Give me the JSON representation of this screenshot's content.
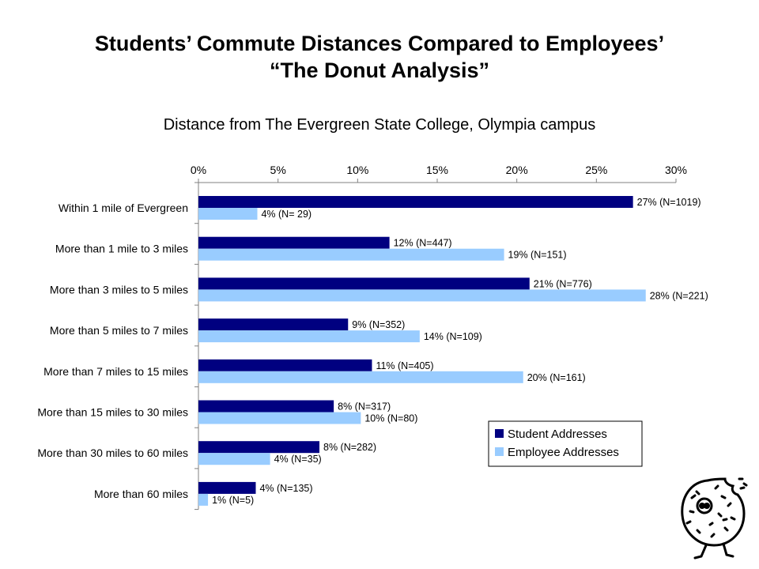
{
  "slide": {
    "title_line1": "Students’ Commute Distances Compared to Employees’",
    "title_line2": "“The Donut Analysis”"
  },
  "colors": {
    "student": "#000080",
    "employee": "#99ccff",
    "axis": "#808080"
  },
  "chart_data": {
    "type": "bar",
    "orientation": "horizontal",
    "title": "Distance from The Evergreen State College, Olympia campus",
    "categories": [
      "Within 1 mile of Evergreen",
      "More than 1 mile to 3 miles",
      "More than 3 miles to 5 miles",
      "More than 5 miles to 7 miles",
      "More than 7 miles to 15 miles",
      "More than 15 miles to 30 miles",
      "More than 30 miles to 60 miles",
      "More than 60 miles"
    ],
    "series": [
      {
        "name": "Student Addresses",
        "values": [
          27.3,
          12.0,
          20.8,
          9.4,
          10.9,
          8.5,
          7.6,
          3.6
        ],
        "labels": [
          "27% (N=1019)",
          "12% (N=447)",
          "21% (N=776)",
          "9% (N=352)",
          "11% (N=405)",
          "8% (N=317)",
          "8% (N=282)",
          "4% (N=135)"
        ]
      },
      {
        "name": "Employee Addresses",
        "values": [
          3.7,
          19.2,
          28.1,
          13.9,
          20.4,
          10.2,
          4.5,
          0.6
        ],
        "labels": [
          "4% (N= 29)",
          "19% (N=151)",
          "28% (N=221)",
          "14% (N=109)",
          "20% (N=161)",
          "10% (N=80)",
          "4% (N=35)",
          "1% (N=5)"
        ]
      }
    ],
    "xlim": [
      0,
      30
    ],
    "xticks": [
      "0%",
      "5%",
      "10%",
      "15%",
      "20%",
      "25%",
      "30%"
    ],
    "xtick_values": [
      0,
      5,
      10,
      15,
      20,
      25,
      30
    ],
    "grid": false,
    "legend_position": "bottom-right"
  },
  "mascot": {
    "icon": "donut-mascot-icon"
  }
}
